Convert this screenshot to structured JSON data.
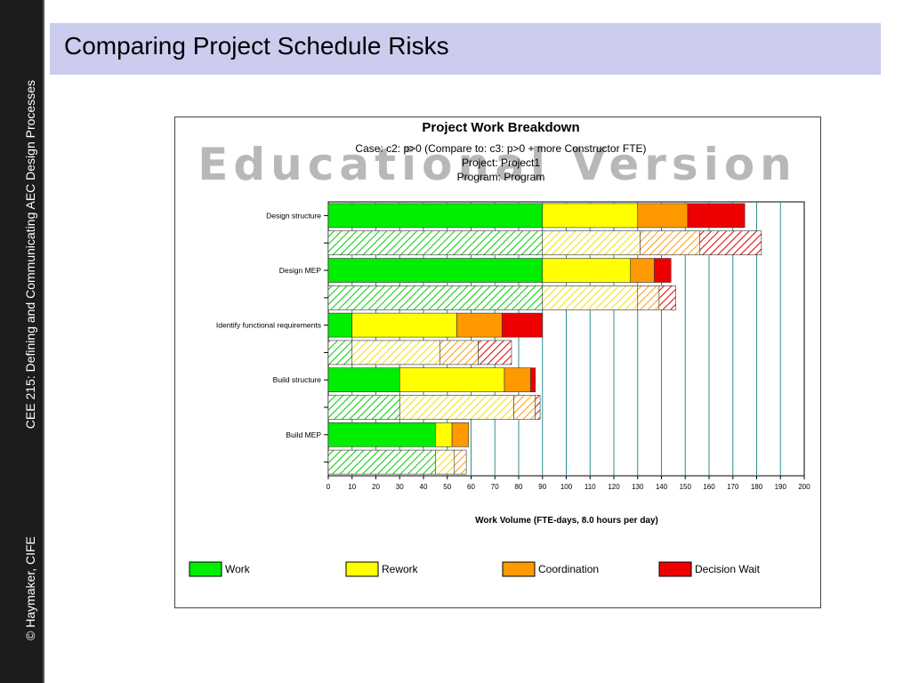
{
  "slide": {
    "title": "Comparing Project Schedule Risks",
    "footer_left": "© Haymaker, CIFE",
    "footer_right": "CEE 215: Defining and Communicating AEC Design Processes"
  },
  "chart_data": {
    "type": "bar",
    "orientation": "horizontal",
    "stacked": true,
    "title": "Project Work Breakdown",
    "subtitle_lines": [
      "Case: c2: p>0 (Compare to: c3: p>0 + more Constructor FTE)",
      "Project: Project1",
      "Program: Program"
    ],
    "watermark": "Educational Version",
    "xlabel": "Work Volume  (FTE-days, 8.0 hours per day)",
    "xlim": [
      0,
      200
    ],
    "xticks": [
      0,
      10,
      20,
      30,
      40,
      50,
      60,
      70,
      80,
      90,
      100,
      110,
      120,
      130,
      140,
      150,
      160,
      170,
      180,
      190,
      200
    ],
    "grid": "vertical",
    "legend_position": "bottom",
    "series": [
      {
        "name": "Work",
        "color": "#00ee00"
      },
      {
        "name": "Rework",
        "color": "#ffff00"
      },
      {
        "name": "Coordination",
        "color": "#ff9900"
      },
      {
        "name": "Decision Wait",
        "color": "#ee0000"
      }
    ],
    "rows": [
      {
        "label": "Design structure",
        "case": "c2",
        "values": [
          90,
          40,
          21,
          24
        ]
      },
      {
        "label": "",
        "case": "c3",
        "values": [
          90,
          41,
          25,
          26
        ]
      },
      {
        "label": "Design MEP",
        "case": "c2",
        "values": [
          90,
          37,
          10,
          7
        ]
      },
      {
        "label": "",
        "case": "c3",
        "values": [
          90,
          40,
          9,
          7
        ]
      },
      {
        "label": "Identify functional requirements",
        "case": "c2",
        "values": [
          10,
          44,
          19,
          17
        ]
      },
      {
        "label": "",
        "case": "c3",
        "values": [
          10,
          37,
          16,
          14
        ]
      },
      {
        "label": "Build structure",
        "case": "c2",
        "values": [
          30,
          44,
          11,
          2
        ]
      },
      {
        "label": "",
        "case": "c3",
        "values": [
          30,
          48,
          9,
          2
        ]
      },
      {
        "label": "Build MEP",
        "case": "c2",
        "values": [
          45,
          7,
          7,
          0
        ]
      },
      {
        "label": "",
        "case": "c3",
        "values": [
          45,
          8,
          5,
          0
        ]
      }
    ]
  }
}
